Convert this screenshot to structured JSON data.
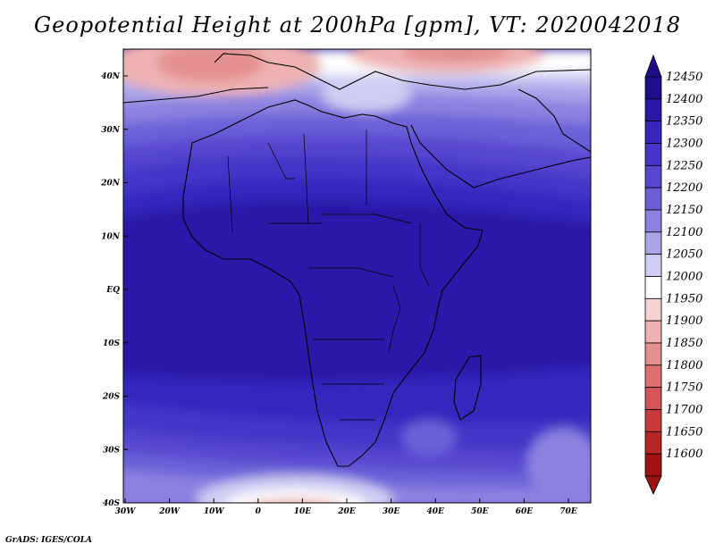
{
  "title": "Geopotential Height at 200hPa [gpm], VT: 2020042018",
  "footer": "GrADS: IGES/COLA",
  "map": {
    "lat_labels": [
      "40N",
      "30N",
      "20N",
      "10N",
      "EQ",
      "10S",
      "20S",
      "30S",
      "40S"
    ],
    "lon_labels": [
      "30W",
      "20W",
      "10W",
      "0",
      "10E",
      "20E",
      "30E",
      "40E",
      "50E",
      "60E",
      "70E"
    ]
  },
  "colorbar": {
    "levels": [
      "12450",
      "12400",
      "12350",
      "12300",
      "12250",
      "12200",
      "12150",
      "12100",
      "12050",
      "12000",
      "11950",
      "11900",
      "11850",
      "11800",
      "11750",
      "11700",
      "11650",
      "11600"
    ],
    "colors": [
      "#1f0e8c",
      "#2a19a8",
      "#3626be",
      "#4535c8",
      "#5647cf",
      "#6c60d7",
      "#8b82e0",
      "#aaa5e8",
      "#cfcdf3",
      "#ffffff",
      "#f6d3d3",
      "#eeb2b2",
      "#e49090",
      "#dc7070",
      "#d35656",
      "#c83a3a",
      "#b72525",
      "#a01212"
    ]
  }
}
